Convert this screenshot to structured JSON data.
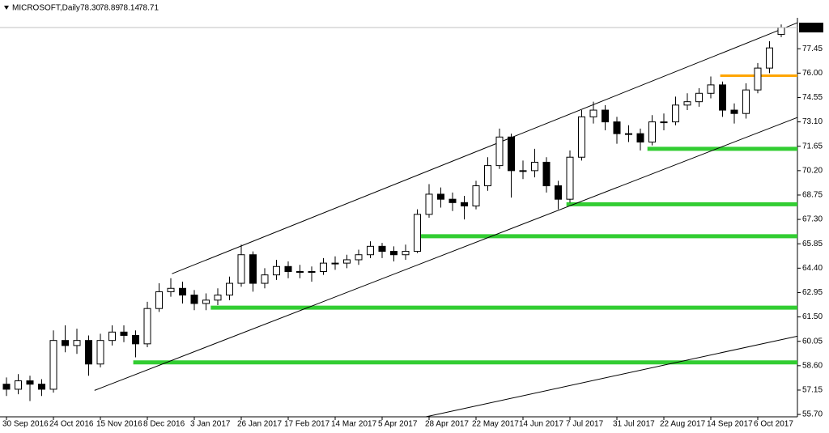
{
  "header": {
    "symbol": "MICROSOFT,Daily",
    "ohlc": [
      "78.30",
      "78.89",
      "78.14",
      "78.71"
    ]
  },
  "chart_data": {
    "type": "candlestick",
    "categories": [
      "30 Sep 2016",
      null,
      null,
      null,
      "24 Oct 2016",
      null,
      null,
      null,
      "15 Nov 2016",
      null,
      null,
      null,
      "8 Dec 2016",
      null,
      null,
      null,
      "3 Jan 2017",
      null,
      null,
      null,
      "26 Jan 2017",
      null,
      null,
      null,
      "17 Feb 2017",
      null,
      null,
      null,
      "14 Mar 2017",
      null,
      null,
      null,
      "5 Apr 2017",
      null,
      null,
      null,
      "28 Apr 2017",
      null,
      null,
      null,
      "22 May 2017",
      null,
      null,
      null,
      "14 Jun 2017",
      null,
      null,
      null,
      "7 Jul 2017",
      null,
      null,
      null,
      "31 Jul 2017",
      null,
      null,
      null,
      "22 Aug 2017",
      null,
      null,
      null,
      "14 Sep 2017",
      null,
      null,
      null,
      "6 Oct 2017",
      null,
      null
    ],
    "open": [
      57.5,
      57.2,
      57.7,
      57.5,
      57.2,
      60.1,
      59.8,
      60.1,
      58.7,
      60.1,
      60.6,
      60.4,
      59.9,
      62.0,
      63.0,
      63.2,
      62.8,
      62.3,
      62.5,
      62.8,
      63.5,
      65.2,
      63.5,
      64.0,
      64.5,
      64.2,
      64.2,
      64.2,
      64.7,
      64.7,
      64.9,
      65.2,
      65.7,
      65.4,
      65.2,
      65.4,
      67.6,
      68.8,
      68.5,
      68.3,
      68.1,
      69.3,
      70.5,
      72.2,
      70.2,
      70.2,
      70.7,
      69.3,
      68.5,
      71.0,
      73.4,
      73.8,
      73.1,
      72.4,
      72.4,
      71.9,
      73.1,
      73.1,
      74.1,
      74.3,
      74.8,
      75.3,
      73.8,
      73.6,
      75.0,
      76.3,
      78.3
    ],
    "high": [
      57.9,
      58.1,
      58.0,
      57.8,
      60.7,
      61.0,
      60.8,
      60.4,
      60.5,
      61.0,
      61.0,
      60.7,
      62.4,
      63.5,
      63.8,
      63.6,
      63.1,
      62.9,
      63.2,
      63.9,
      65.8,
      65.4,
      64.4,
      64.9,
      64.8,
      64.6,
      64.5,
      65.0,
      65.1,
      65.2,
      65.5,
      66.0,
      65.9,
      65.7,
      65.8,
      67.9,
      69.4,
      69.2,
      68.9,
      68.7,
      69.6,
      71.0,
      72.7,
      72.4,
      70.8,
      71.5,
      71.0,
      69.6,
      71.4,
      73.8,
      74.3,
      74.1,
      73.4,
      72.9,
      72.7,
      73.5,
      73.6,
      74.6,
      74.8,
      75.1,
      75.8,
      75.5,
      74.2,
      75.4,
      76.6,
      77.9,
      78.89
    ],
    "low": [
      56.8,
      56.9,
      56.5,
      56.8,
      57.0,
      59.4,
      59.3,
      58.0,
      58.5,
      59.8,
      60.0,
      59.1,
      59.7,
      61.8,
      62.7,
      62.3,
      61.9,
      61.9,
      62.2,
      62.5,
      63.3,
      63.0,
      63.2,
      63.7,
      63.8,
      63.8,
      63.6,
      64.0,
      64.3,
      64.4,
      64.6,
      65.0,
      65.0,
      64.8,
      64.9,
      65.3,
      67.4,
      68.0,
      67.8,
      67.3,
      67.9,
      69.0,
      70.3,
      68.6,
      69.7,
      69.8,
      68.9,
      67.9,
      68.3,
      70.8,
      73.0,
      72.6,
      71.8,
      71.9,
      71.4,
      71.7,
      72.6,
      72.9,
      73.8,
      74.0,
      74.5,
      73.4,
      73.0,
      73.3,
      74.8,
      76.0,
      78.14
    ],
    "close": [
      57.2,
      57.7,
      57.5,
      57.2,
      60.1,
      59.8,
      60.1,
      58.7,
      60.1,
      60.6,
      60.4,
      59.9,
      62.0,
      63.0,
      63.2,
      62.8,
      62.3,
      62.5,
      62.8,
      63.5,
      65.2,
      63.5,
      64.0,
      64.5,
      64.2,
      64.2,
      64.2,
      64.7,
      64.7,
      64.9,
      65.2,
      65.7,
      65.4,
      65.2,
      65.4,
      67.6,
      68.8,
      68.5,
      68.3,
      68.1,
      69.3,
      70.5,
      72.2,
      70.2,
      70.2,
      70.7,
      69.3,
      68.5,
      71.0,
      73.4,
      73.8,
      73.1,
      72.4,
      72.4,
      71.9,
      73.1,
      73.1,
      74.1,
      74.3,
      74.8,
      75.3,
      73.8,
      73.6,
      75.0,
      76.3,
      77.5,
      78.71
    ],
    "up_color": "#ffffff",
    "down_color": "#000000",
    "ylim": [
      55.56,
      79.29
    ],
    "yticks": [
      77.45,
      {
        "value": 76,
        "label": "76.00"
      },
      74.55,
      {
        "value": 73.1,
        "label": "73.10"
      },
      71.65,
      {
        "value": 70.2,
        "label": "70.20"
      },
      68.75,
      {
        "value": 67.3,
        "label": "67.30"
      },
      65.85,
      {
        "value": 64.4,
        "label": "64.40"
      },
      62.95,
      {
        "value": 61.5,
        "label": "61.50"
      },
      60.05,
      {
        "value": 58.6,
        "label": "58.60"
      },
      57.15,
      {
        "value": 55.7,
        "label": "55.70"
      }
    ],
    "trend_lines": [
      {
        "x": [
          14.1,
          67.4
        ],
        "y": [
          64.07,
          79.0
        ]
      },
      {
        "x": [
          7.5,
          67.4
        ],
        "y": [
          57.13,
          73.37
        ]
      },
      {
        "x": [
          35.0,
          67.4
        ],
        "y": [
          55.45,
          60.36
        ]
      }
    ],
    "levels": [
      {
        "value": 71.5,
        "start": 54.6,
        "color": "#32cd32"
      },
      {
        "value": 68.2,
        "start": 47.7,
        "color": "#32cd32"
      },
      {
        "value": 66.3,
        "start": 34.8,
        "color": "#32cd32"
      },
      {
        "value": 62.05,
        "start": 17.4,
        "color": "#32cd32"
      },
      {
        "value": 58.8,
        "start": 10.8,
        "color": "#32cd32"
      },
      {
        "value": 75.85,
        "start": 60.8,
        "color": "#ffa500"
      }
    ]
  }
}
